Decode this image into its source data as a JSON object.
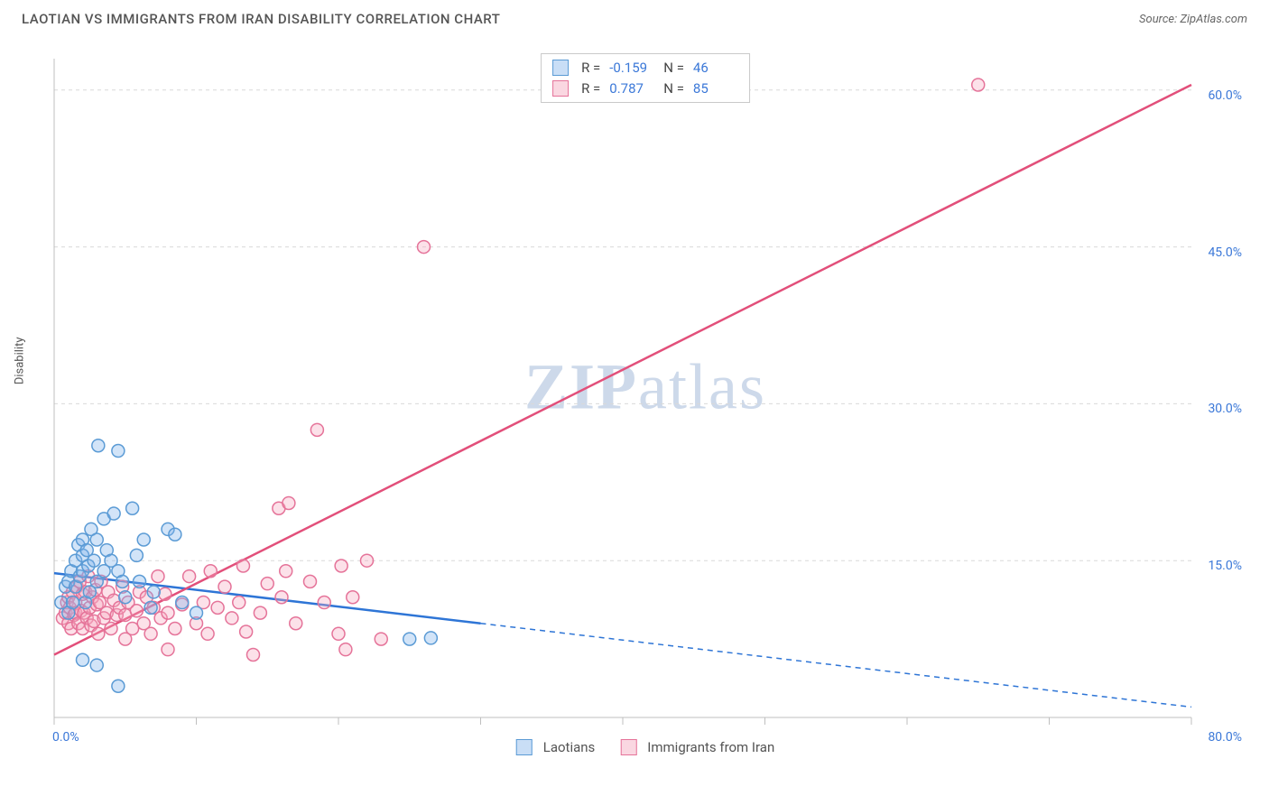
{
  "header": {
    "title": "LAOTIAN VS IMMIGRANTS FROM IRAN DISABILITY CORRELATION CHART",
    "source_prefix": "Source: ",
    "source_name": "ZipAtlas.com"
  },
  "watermark": {
    "zip": "ZIP",
    "atlas": "atlas"
  },
  "chart": {
    "type": "scatter",
    "y_axis_label": "Disability",
    "background_color": "#ffffff",
    "grid_color": "#d9d9d9",
    "axis_color": "#bfbfbf",
    "xlim": [
      0,
      80
    ],
    "ylim": [
      0,
      63
    ],
    "x_ticks": [
      0,
      10,
      20,
      30,
      40,
      50,
      60,
      70,
      80
    ],
    "x_tick_labels": {
      "0": "0.0%",
      "80": "80.0%"
    },
    "y_ticks": [
      15,
      30,
      45,
      60
    ],
    "y_tick_labels": {
      "15": "15.0%",
      "30": "30.0%",
      "45": "45.0%",
      "60": "60.0%"
    },
    "marker_radius": 7,
    "marker_fill_opacity": 0.35,
    "marker_stroke_width": 1.5,
    "line_width": 2.5,
    "series": [
      {
        "key": "laotians",
        "label": "Laotians",
        "color_fill": "#7eb3ec",
        "color_stroke": "#5b9bd5",
        "line_color": "#2e75d6",
        "r_label": "R = ",
        "r_value": "-0.159",
        "n_label": "N = ",
        "n_value": "46",
        "trend": {
          "x1": 0,
          "y1": 13.8,
          "x2": 80,
          "y2": 1.0,
          "solid_until_x": 30
        },
        "points": [
          [
            0.5,
            11
          ],
          [
            0.8,
            12.5
          ],
          [
            1,
            10
          ],
          [
            1,
            13
          ],
          [
            1.2,
            14
          ],
          [
            1.3,
            11
          ],
          [
            1.5,
            15
          ],
          [
            1.5,
            12.5
          ],
          [
            1.7,
            16.5
          ],
          [
            1.8,
            13.5
          ],
          [
            2,
            14
          ],
          [
            2,
            15.5
          ],
          [
            2,
            17
          ],
          [
            2.2,
            11
          ],
          [
            2.3,
            16
          ],
          [
            2.4,
            14.5
          ],
          [
            2.5,
            12
          ],
          [
            2.6,
            18
          ],
          [
            2.8,
            15
          ],
          [
            3,
            13
          ],
          [
            3,
            17
          ],
          [
            3.1,
            26
          ],
          [
            3.5,
            14
          ],
          [
            3.5,
            19
          ],
          [
            3.7,
            16
          ],
          [
            4,
            15
          ],
          [
            4.2,
            19.5
          ],
          [
            4.5,
            14
          ],
          [
            4.5,
            25.5
          ],
          [
            4.8,
            13
          ],
          [
            5,
            11.5
          ],
          [
            5.5,
            20
          ],
          [
            5.8,
            15.5
          ],
          [
            6,
            13
          ],
          [
            6.3,
            17
          ],
          [
            6.8,
            10.5
          ],
          [
            7,
            12
          ],
          [
            8,
            18
          ],
          [
            8.5,
            17.5
          ],
          [
            9,
            11
          ],
          [
            10,
            10
          ],
          [
            4.5,
            3
          ],
          [
            3,
            5
          ],
          [
            2,
            5.5
          ],
          [
            25,
            7.5
          ],
          [
            26.5,
            7.6
          ]
        ]
      },
      {
        "key": "iran",
        "label": "Immigrants from Iran",
        "color_fill": "#f5a8c0",
        "color_stroke": "#e57399",
        "line_color": "#e24f7a",
        "r_label": "R = ",
        "r_value": "0.787",
        "n_label": "N = ",
        "n_value": "85",
        "trend": {
          "x1": 0,
          "y1": 6.0,
          "x2": 80,
          "y2": 60.5,
          "solid_until_x": 80
        },
        "points": [
          [
            0.6,
            9.5
          ],
          [
            0.8,
            10
          ],
          [
            0.9,
            11
          ],
          [
            1,
            9
          ],
          [
            1,
            11.5
          ],
          [
            1.1,
            10.5
          ],
          [
            1.2,
            8.5
          ],
          [
            1.3,
            12
          ],
          [
            1.4,
            9.8
          ],
          [
            1.5,
            11
          ],
          [
            1.5,
            10
          ],
          [
            1.6,
            12.5
          ],
          [
            1.7,
            9
          ],
          [
            1.8,
            13
          ],
          [
            1.9,
            10.2
          ],
          [
            2,
            8.5
          ],
          [
            2,
            11.8
          ],
          [
            2.1,
            10
          ],
          [
            2.2,
            12
          ],
          [
            2.3,
            9.5
          ],
          [
            2.4,
            13.5
          ],
          [
            2.5,
            10.5
          ],
          [
            2.6,
            8.8
          ],
          [
            2.7,
            11.5
          ],
          [
            2.8,
            9.2
          ],
          [
            2.9,
            12.2
          ],
          [
            3,
            10.8
          ],
          [
            3.1,
            8
          ],
          [
            3.2,
            11
          ],
          [
            3.3,
            13
          ],
          [
            3.5,
            9.5
          ],
          [
            3.7,
            10
          ],
          [
            3.8,
            12
          ],
          [
            4,
            8.5
          ],
          [
            4.2,
            11.2
          ],
          [
            4.4,
            9.8
          ],
          [
            4.6,
            10.5
          ],
          [
            4.8,
            12.5
          ],
          [
            5,
            7.5
          ],
          [
            5,
            9.8
          ],
          [
            5.2,
            11
          ],
          [
            5.5,
            8.5
          ],
          [
            5.8,
            10.2
          ],
          [
            6,
            12
          ],
          [
            6.3,
            9
          ],
          [
            6.5,
            11.5
          ],
          [
            6.8,
            8
          ],
          [
            7,
            10.5
          ],
          [
            7.3,
            13.5
          ],
          [
            7.5,
            9.5
          ],
          [
            7.8,
            11.8
          ],
          [
            8,
            10
          ],
          [
            8,
            6.5
          ],
          [
            8.5,
            8.5
          ],
          [
            9,
            10.8
          ],
          [
            9.5,
            13.5
          ],
          [
            10,
            9
          ],
          [
            10.5,
            11
          ],
          [
            10.8,
            8
          ],
          [
            11,
            14
          ],
          [
            11.5,
            10.5
          ],
          [
            12,
            12.5
          ],
          [
            12.5,
            9.5
          ],
          [
            13,
            11
          ],
          [
            13.3,
            14.5
          ],
          [
            13.5,
            8.2
          ],
          [
            14,
            6
          ],
          [
            14.5,
            10
          ],
          [
            15,
            12.8
          ],
          [
            15.8,
            20
          ],
          [
            16,
            11.5
          ],
          [
            16.3,
            14
          ],
          [
            16.5,
            20.5
          ],
          [
            17,
            9
          ],
          [
            18,
            13
          ],
          [
            19,
            11
          ],
          [
            20,
            8
          ],
          [
            20.2,
            14.5
          ],
          [
            20.5,
            6.5
          ],
          [
            21,
            11.5
          ],
          [
            22,
            15
          ],
          [
            23,
            7.5
          ],
          [
            18.5,
            27.5
          ],
          [
            26,
            45
          ],
          [
            65,
            60.5
          ]
        ]
      }
    ]
  },
  "legend_bottom": {
    "item1": "Laotians",
    "item2": "Immigrants from Iran"
  }
}
